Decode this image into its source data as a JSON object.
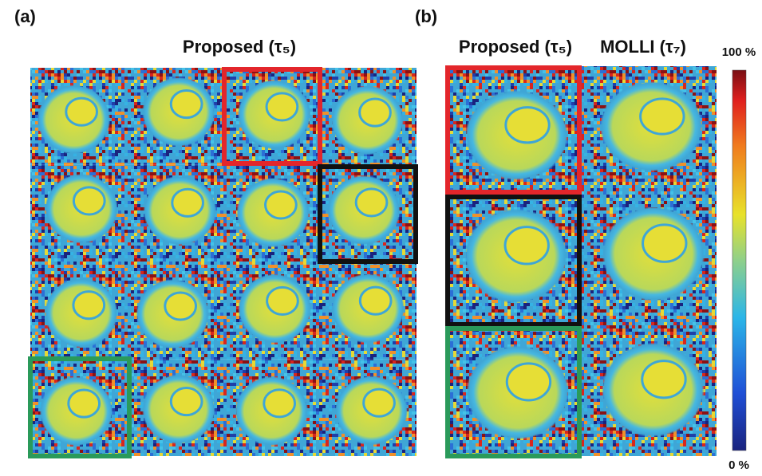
{
  "panel_a": {
    "label": "(a)",
    "title": "Proposed (τ₅)"
  },
  "panel_b": {
    "label": "(b)",
    "columns": [
      "Proposed (τ₅)",
      "MOLLI (τ₇)"
    ]
  },
  "colorbar": {
    "max_label": "100 %",
    "min_label": "0 %"
  }
}
